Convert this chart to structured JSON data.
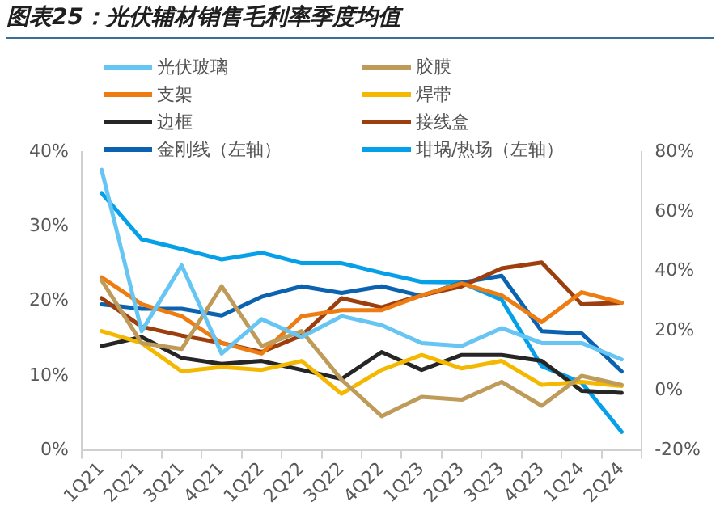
{
  "chart_data": {
    "type": "line",
    "title": "图表25：光伏辅材销售毛利率季度均值",
    "categories": [
      "1Q21",
      "2Q21",
      "3Q21",
      "4Q21",
      "1Q22",
      "2Q22",
      "3Q22",
      "4Q22",
      "1Q23",
      "2Q23",
      "3Q23",
      "4Q23",
      "1Q24",
      "2Q24"
    ],
    "series": [
      {
        "name": "光伏玻璃",
        "color": "#66c5f2",
        "axis": "y2",
        "values": [
          74,
          20,
          42,
          12.5,
          24,
          18,
          25,
          22,
          16,
          15,
          21,
          16,
          16,
          10.5
        ]
      },
      {
        "name": "胶膜",
        "color": "#bf9b5a",
        "axis": "y2",
        "values": [
          37,
          16,
          14,
          35,
          15,
          20,
          3.7,
          -8.5,
          -2,
          -3,
          3,
          -5,
          5,
          2
        ]
      },
      {
        "name": "支架",
        "color": "#ed7d12",
        "axis": "y2",
        "values": [
          38,
          29,
          25,
          16,
          12.5,
          25,
          27,
          27,
          32,
          36,
          32,
          23,
          33,
          29.5
        ]
      },
      {
        "name": "焊带",
        "color": "#f5b800",
        "axis": "y2",
        "values": [
          20,
          16,
          6.5,
          8,
          7,
          10,
          -1,
          7,
          12,
          7.5,
          10,
          2,
          3,
          1.6
        ]
      },
      {
        "name": "边框",
        "color": "#262626",
        "axis": "y2",
        "values": [
          15,
          18,
          11,
          9,
          10,
          7,
          4,
          13,
          7,
          12,
          12,
          10,
          0,
          -0.7
        ]
      },
      {
        "name": "接线盒",
        "color": "#9c3e0e",
        "axis": "y2",
        "values": [
          31,
          21.5,
          18.5,
          16,
          13,
          18.5,
          31,
          28,
          32,
          35,
          41,
          43,
          29,
          29.5
        ]
      },
      {
        "name": "金刚线（左轴）",
        "color": "#0b62b0",
        "axis": "y",
        "values": [
          19.6,
          19,
          19,
          18.1,
          20.6,
          22,
          21.1,
          22,
          20.7,
          22.5,
          23.4,
          16,
          15.7,
          10.6
        ]
      },
      {
        "name": "坩埚/热场（左轴）",
        "color": "#05a0e8",
        "axis": "y",
        "values": [
          34.5,
          28.3,
          27,
          25.6,
          26.5,
          25.1,
          25.1,
          23.8,
          22.6,
          22.5,
          20.2,
          11.3,
          9.1,
          2.5
        ]
      }
    ],
    "ylim": [
      0,
      40
    ],
    "yticks": [
      {
        "value": 0,
        "label": "0%"
      },
      {
        "value": 10,
        "label": "10%"
      },
      {
        "value": 20,
        "label": "20%"
      },
      {
        "value": 30,
        "label": "30%"
      },
      {
        "value": 40,
        "label": "40%"
      }
    ],
    "y2lim": [
      -20,
      80
    ],
    "y2ticks": [
      {
        "value": -20,
        "label": "-20%"
      },
      {
        "value": 0,
        "label": "0%"
      },
      {
        "value": 20,
        "label": "20%"
      },
      {
        "value": 40,
        "label": "40%"
      },
      {
        "value": 60,
        "label": "60%"
      },
      {
        "value": 80,
        "label": "80%"
      }
    ],
    "legend": "top",
    "marker": "none",
    "line_style": "solid"
  }
}
